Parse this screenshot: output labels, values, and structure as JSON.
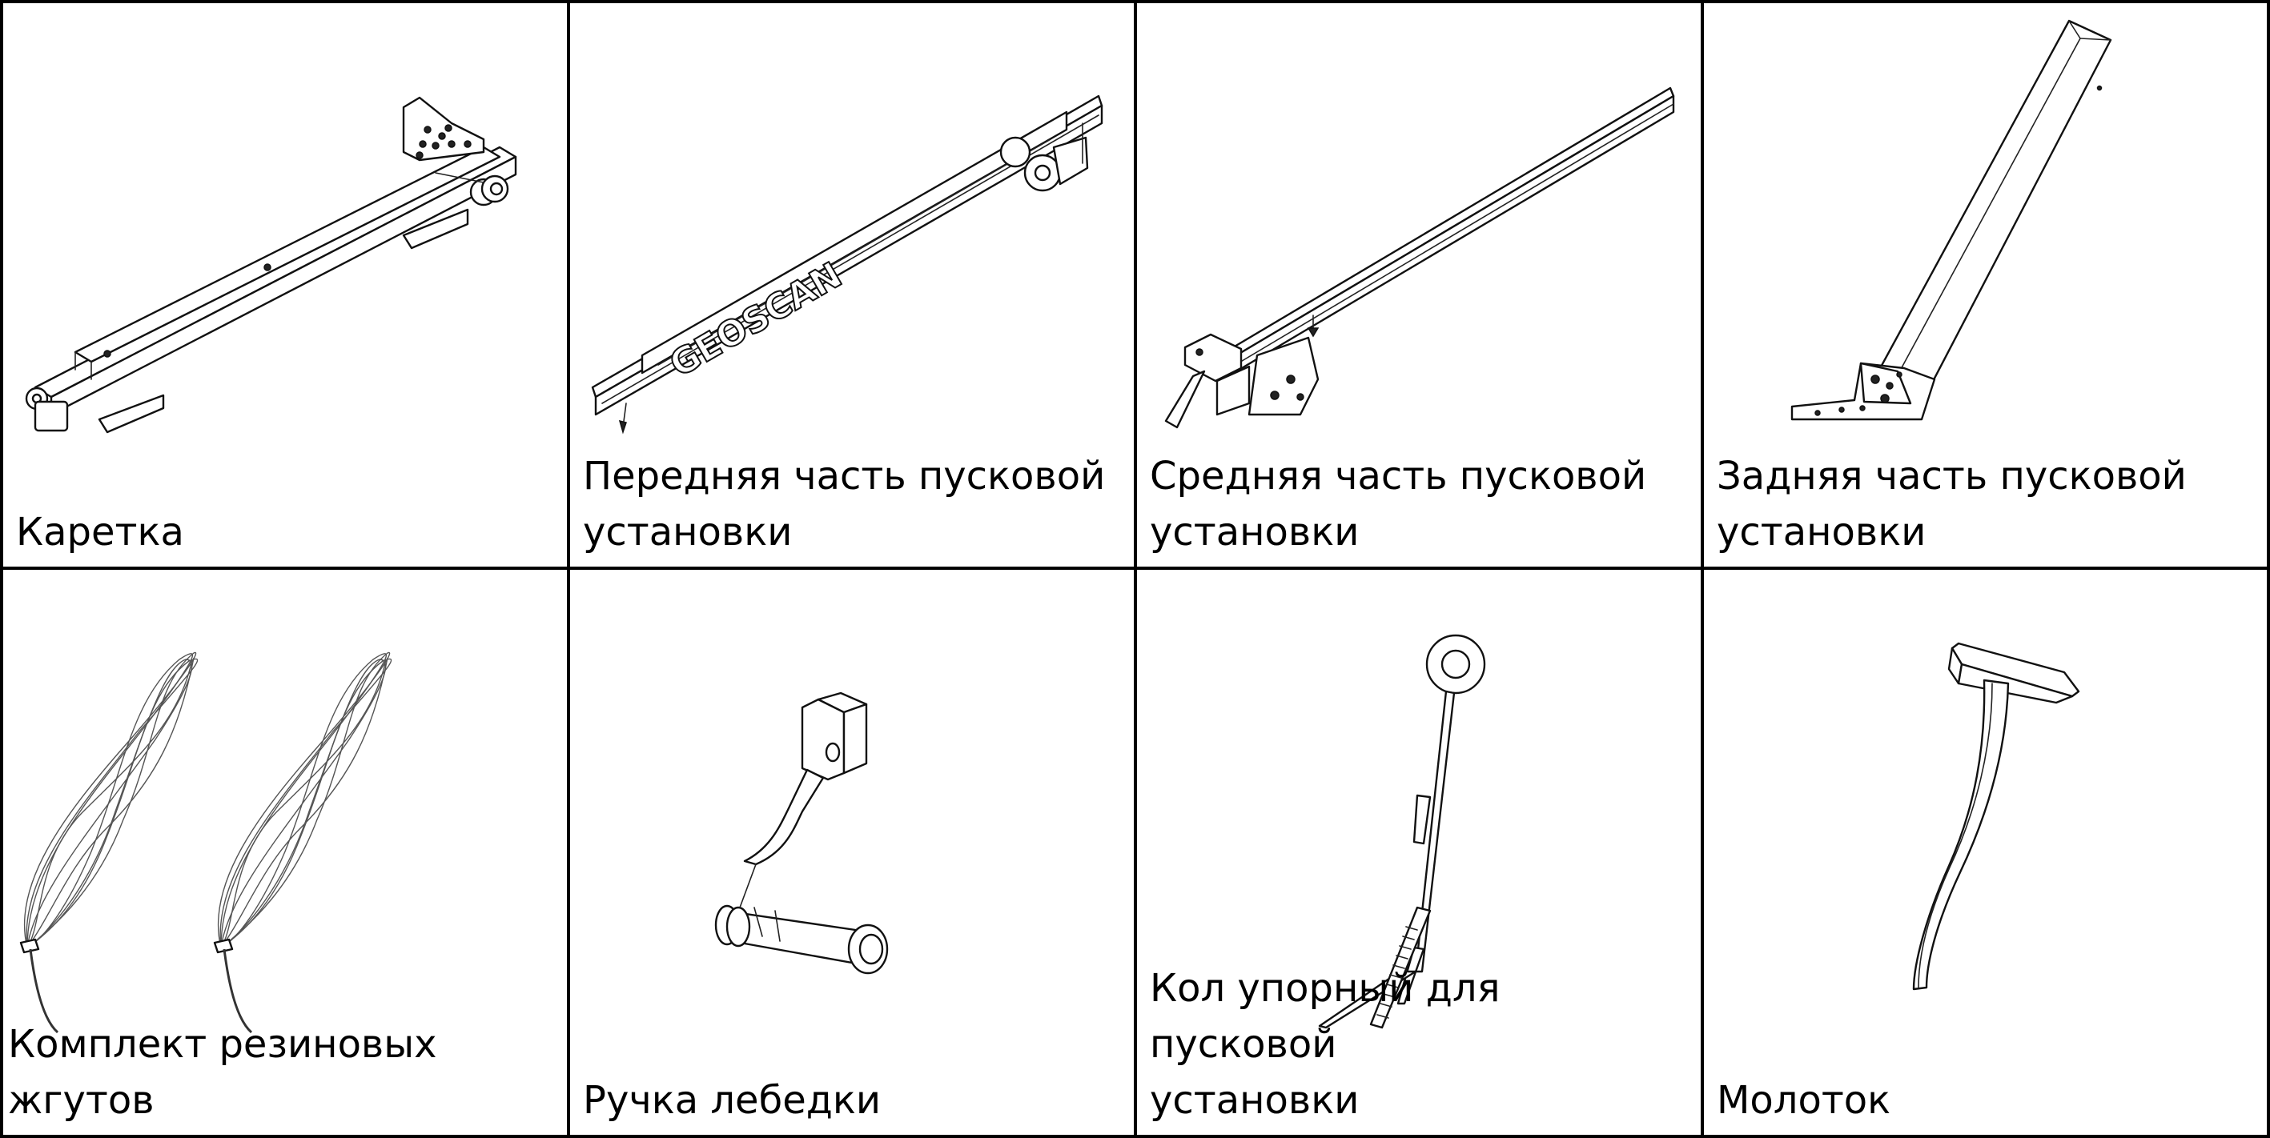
{
  "items": [
    {
      "label": "Каретка",
      "icon": "carriage-icon"
    },
    {
      "label": "Передняя часть пусковой\nустановки",
      "icon": "launcher-front-part-icon",
      "logo_text": "GEOSCAN"
    },
    {
      "label": "Средняя часть пусковой\nустановки",
      "icon": "launcher-middle-part-icon"
    },
    {
      "label": "Задняя часть пусковой\nустановки",
      "icon": "launcher-rear-part-icon"
    },
    {
      "label": "Комплект резиновых жгутов",
      "icon": "rubber-cords-icon"
    },
    {
      "label": "Ручка лебедки",
      "icon": "winch-handle-icon"
    },
    {
      "label": "Кол упорный для пусковой\nустановки",
      "icon": "stake-icon"
    },
    {
      "label": "Молоток",
      "icon": "hammer-icon"
    }
  ],
  "colors": {
    "border": "#000000",
    "background": "#ffffff",
    "drawing": "#111111"
  }
}
